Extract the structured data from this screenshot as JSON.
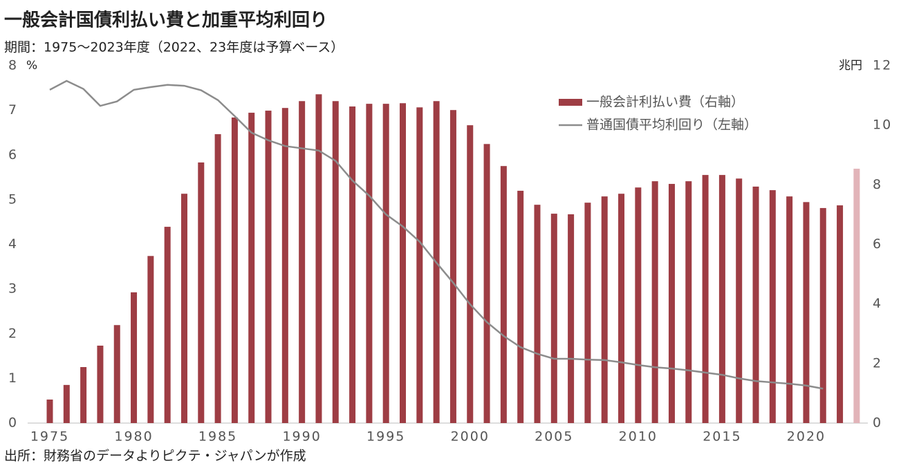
{
  "chart_data": {
    "type": "bar_line",
    "title": "一般会計国債利払い費と加重平均利回り",
    "subtitle": "期間：1975～2023年度（2022、23年度は予算ベース）",
    "source": "出所：財務省のデータよりピクテ・ジャパンが作成",
    "y_unit": "%",
    "y2_unit": "兆円",
    "categories": [
      "1975",
      null,
      null,
      null,
      null,
      "1980",
      null,
      null,
      null,
      null,
      "1985",
      null,
      null,
      null,
      null,
      "1990",
      null,
      null,
      null,
      null,
      "1995",
      null,
      null,
      null,
      null,
      "2000",
      null,
      null,
      null,
      null,
      "2005",
      null,
      null,
      null,
      null,
      "2010",
      null,
      null,
      null,
      null,
      "2015",
      null,
      null,
      null,
      null,
      "2020",
      null,
      null,
      null
    ],
    "ylim": [
      0,
      8
    ],
    "yticks": [
      0,
      1,
      2,
      3,
      4,
      5,
      6,
      7,
      8
    ],
    "y2lim": [
      0,
      12
    ],
    "y2ticks": [
      0,
      2,
      4,
      6,
      8,
      10,
      12
    ],
    "grid": false,
    "series": [
      {
        "name": "一般会計利払い費（右軸）",
        "type": "bar",
        "axis": "y2",
        "color": "#9e3d44",
        "colors": [
          "#9e3d44",
          "#9e3d44",
          "#9e3d44",
          "#9e3d44",
          "#9e3d44",
          "#9e3d44",
          "#9e3d44",
          "#9e3d44",
          "#9e3d44",
          "#9e3d44",
          "#9e3d44",
          "#9e3d44",
          "#9e3d44",
          "#9e3d44",
          "#9e3d44",
          "#9e3d44",
          "#9e3d44",
          "#9e3d44",
          "#9e3d44",
          "#9e3d44",
          "#9e3d44",
          "#9e3d44",
          "#9e3d44",
          "#9e3d44",
          "#9e3d44",
          "#9e3d44",
          "#9e3d44",
          "#9e3d44",
          "#9e3d44",
          "#9e3d44",
          "#9e3d44",
          "#9e3d44",
          "#9e3d44",
          "#9e3d44",
          "#9e3d44",
          "#9e3d44",
          "#9e3d44",
          "#9e3d44",
          "#9e3d44",
          "#9e3d44",
          "#9e3d44",
          "#9e3d44",
          "#9e3d44",
          "#9e3d44",
          "#9e3d44",
          "#9e3d44",
          "#9e3d44",
          "#9e3d44",
          "#e2b4b9"
        ],
        "values": [
          0.79,
          1.28,
          1.88,
          2.6,
          3.29,
          4.39,
          5.61,
          6.59,
          7.7,
          8.75,
          9.7,
          10.26,
          10.42,
          10.49,
          10.58,
          10.81,
          11.04,
          10.81,
          10.63,
          10.72,
          10.72,
          10.74,
          10.6,
          10.81,
          10.51,
          10.0,
          9.37,
          8.63,
          7.8,
          7.33,
          7.03,
          7.01,
          7.4,
          7.61,
          7.7,
          7.91,
          8.12,
          8.03,
          8.12,
          8.33,
          8.33,
          8.21,
          7.94,
          7.82,
          7.61,
          7.42,
          7.22,
          7.31,
          8.54
        ]
      },
      {
        "name": "普通国債平均利回り（左軸）",
        "type": "line",
        "axis": "y",
        "color": "#8c8c8c",
        "values": [
          7.46,
          7.66,
          7.48,
          7.1,
          7.2,
          7.46,
          7.52,
          7.57,
          7.55,
          7.45,
          7.23,
          6.87,
          6.5,
          6.33,
          6.2,
          6.15,
          6.1,
          5.87,
          5.43,
          5.09,
          4.67,
          4.4,
          4.06,
          3.59,
          3.14,
          2.66,
          2.26,
          1.95,
          1.7,
          1.55,
          1.44,
          1.44,
          1.42,
          1.41,
          1.36,
          1.3,
          1.25,
          1.22,
          1.18,
          1.13,
          1.08,
          1.0,
          0.94,
          0.91,
          0.88,
          0.84,
          0.77,
          null,
          null
        ]
      }
    ]
  }
}
